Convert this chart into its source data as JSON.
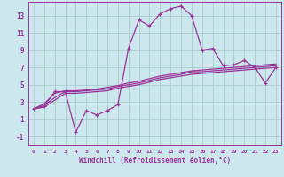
{
  "xlabel": "Windchill (Refroidissement éolien,°C)",
  "background_color": "#cce8ee",
  "grid_color": "#aacccc",
  "line_color": "#993399",
  "x": [
    0,
    1,
    2,
    3,
    4,
    5,
    6,
    7,
    8,
    9,
    10,
    11,
    12,
    13,
    14,
    15,
    16,
    17,
    18,
    19,
    20,
    21,
    22,
    23
  ],
  "series1": [
    2.2,
    2.5,
    4.2,
    4.2,
    -0.5,
    2.0,
    1.5,
    2.0,
    2.7,
    9.2,
    12.5,
    11.8,
    13.2,
    13.8,
    14.1,
    13.0,
    9.0,
    9.2,
    7.2,
    7.3,
    7.8,
    7.0,
    5.2,
    7.0
  ],
  "series2": [
    2.2,
    2.6,
    3.5,
    4.2,
    4.2,
    4.3,
    4.4,
    4.5,
    4.8,
    5.0,
    5.2,
    5.5,
    5.8,
    6.0,
    6.2,
    6.5,
    6.5,
    6.6,
    6.7,
    6.8,
    6.9,
    7.0,
    7.1,
    7.2
  ],
  "series3": [
    2.2,
    2.8,
    4.0,
    4.3,
    4.3,
    4.4,
    4.5,
    4.7,
    4.9,
    5.2,
    5.4,
    5.7,
    6.0,
    6.2,
    6.4,
    6.6,
    6.7,
    6.8,
    6.9,
    7.0,
    7.1,
    7.2,
    7.3,
    7.4
  ],
  "series4": [
    2.2,
    2.4,
    3.2,
    4.0,
    4.0,
    4.1,
    4.2,
    4.3,
    4.6,
    4.8,
    5.0,
    5.3,
    5.6,
    5.8,
    6.0,
    6.2,
    6.3,
    6.4,
    6.5,
    6.6,
    6.7,
    6.8,
    6.9,
    7.0
  ],
  "ylim": [
    -2.0,
    14.6
  ],
  "yticks": [
    -1,
    1,
    3,
    5,
    7,
    9,
    11,
    13
  ],
  "xlim": [
    -0.5,
    23.5
  ]
}
